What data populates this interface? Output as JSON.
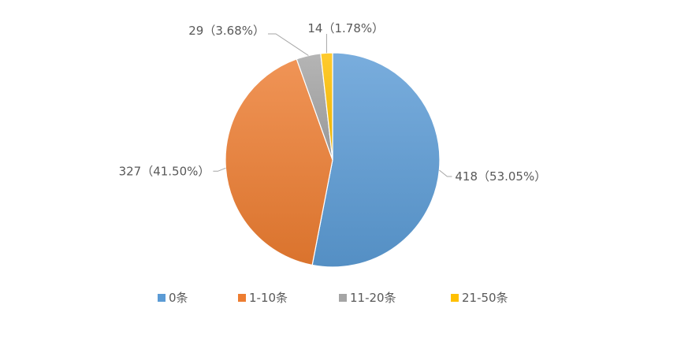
{
  "chart_data": {
    "type": "pie",
    "categories": [
      "0条",
      "1-10条",
      "11-20条",
      "21-50条"
    ],
    "values": [
      418,
      327,
      29,
      14
    ],
    "percentages": [
      "53.05%",
      "41.50%",
      "3.68%",
      "1.78%"
    ],
    "data_labels": [
      "418（53.05%）",
      "327（41.50%）",
      "29（3.68%）",
      "14（1.78%）"
    ],
    "colors": [
      "#5b9bd5",
      "#ed7d31",
      "#a5a5a5",
      "#ffc000"
    ],
    "legend_position": "bottom",
    "start_angle": "12 o'clock, clockwise"
  }
}
